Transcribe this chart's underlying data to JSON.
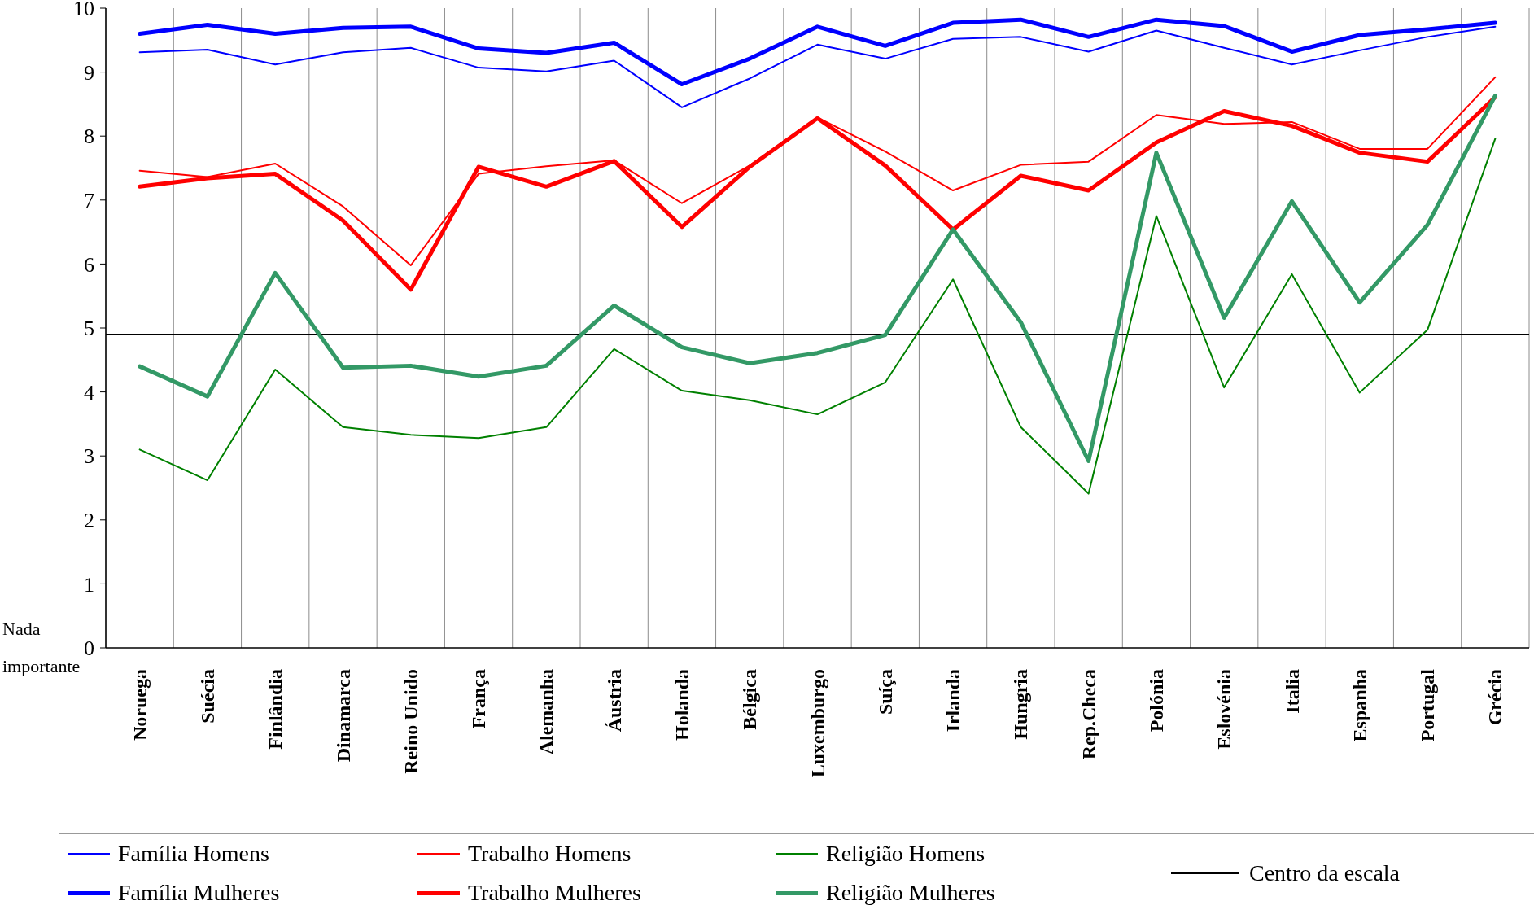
{
  "chart_data": {
    "type": "line",
    "categories": [
      "Noruega",
      "Suécia",
      "Finlândia",
      "Dinamarca",
      "Reino Unido",
      "França",
      "Alemanha",
      "Áustria",
      "Holanda",
      "Bélgica",
      "Luxemburgo",
      "Suíça",
      "Irlanda",
      "Hungria",
      "Rep.Checa",
      "Polónia",
      "Eslovénia",
      "Italia",
      "Espanha",
      "Portugal",
      "Grécia"
    ],
    "series": [
      {
        "name": "Família Homens",
        "color": "#0000ff",
        "values": [
          9.31,
          9.35,
          9.12,
          9.31,
          9.38,
          9.07,
          9.01,
          9.18,
          8.45,
          8.9,
          9.43,
          9.21,
          9.52,
          9.55,
          9.32,
          9.65,
          9.38,
          9.12,
          9.34,
          9.55,
          9.71
        ]
      },
      {
        "name": "Trabalho Homens",
        "color": "#ff0000",
        "values": [
          7.46,
          7.36,
          7.57,
          6.9,
          5.98,
          7.41,
          7.53,
          7.62,
          6.95,
          7.54,
          8.29,
          7.76,
          7.15,
          7.55,
          7.6,
          8.33,
          8.19,
          8.22,
          7.8,
          7.8,
          8.92
        ]
      },
      {
        "name": "Religião Homens",
        "color": "#008000",
        "values": [
          3.1,
          2.62,
          4.35,
          3.45,
          3.33,
          3.28,
          3.45,
          4.67,
          4.02,
          3.87,
          3.65,
          4.15,
          5.76,
          3.45,
          2.41,
          6.75,
          4.07,
          5.84,
          3.99,
          4.97,
          7.96
        ]
      },
      {
        "name": "Família Mulheres",
        "color": "#0000ff",
        "values": [
          9.6,
          9.74,
          9.6,
          9.69,
          9.71,
          9.37,
          9.3,
          9.46,
          8.81,
          9.21,
          9.71,
          9.41,
          9.77,
          9.82,
          9.55,
          9.82,
          9.72,
          9.32,
          9.58,
          9.67,
          9.77
        ]
      },
      {
        "name": "Trabalho Mulheres",
        "color": "#ff0000",
        "values": [
          7.21,
          7.34,
          7.41,
          6.68,
          5.6,
          7.52,
          7.21,
          7.61,
          6.58,
          7.52,
          8.28,
          7.54,
          6.54,
          7.38,
          7.15,
          7.9,
          8.39,
          8.16,
          7.74,
          7.6,
          8.61
        ]
      },
      {
        "name": "Religião Mulheres",
        "color": "#339966",
        "values": [
          4.4,
          3.93,
          5.86,
          4.38,
          4.41,
          4.24,
          4.41,
          5.35,
          4.7,
          4.45,
          4.61,
          4.89,
          6.54,
          5.09,
          2.92,
          7.74,
          5.16,
          6.98,
          5.4,
          6.61,
          8.63
        ]
      }
    ],
    "ylim": [
      0,
      10
    ],
    "yticks": [
      0,
      1,
      2,
      3,
      4,
      5,
      6,
      7,
      8,
      9,
      10
    ],
    "grid": "x",
    "legend": "bottom",
    "marker": "none",
    "ref_lines": [
      {
        "axis": "y",
        "value": 4.9,
        "label": "Centro da escala",
        "color": "#000000"
      }
    ],
    "annotations": [
      "Nada importante"
    ]
  }
}
